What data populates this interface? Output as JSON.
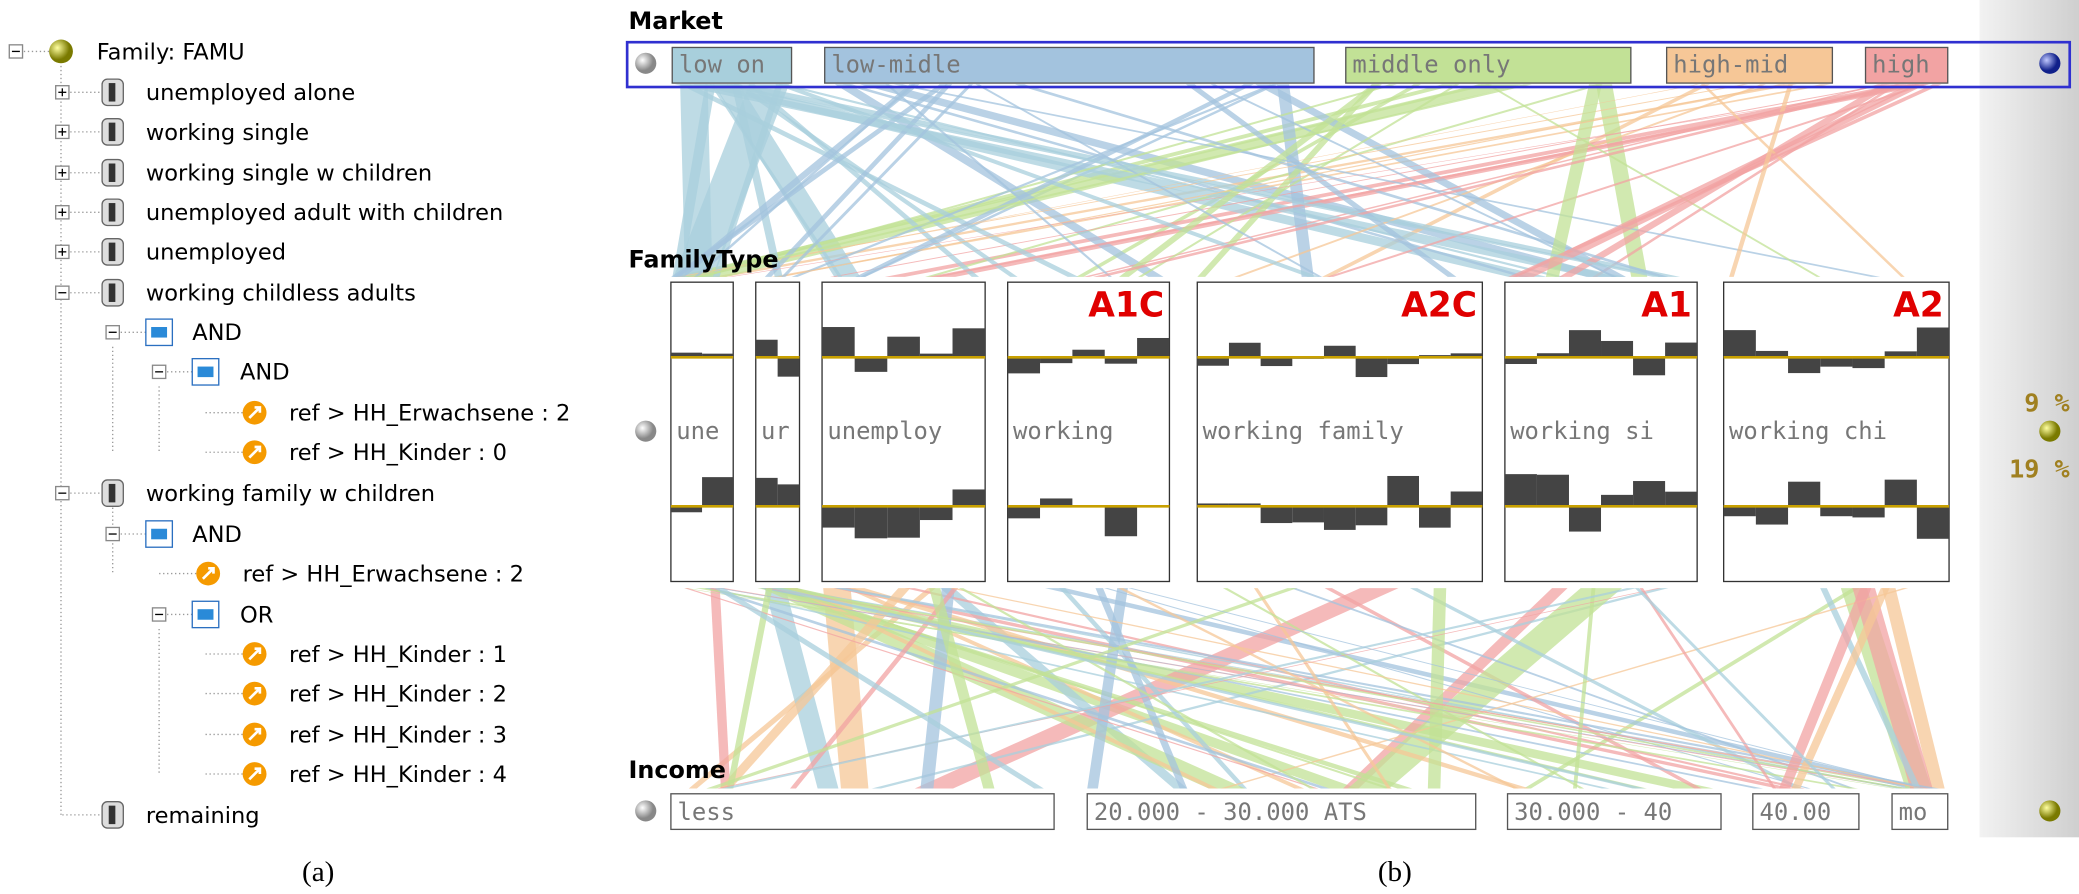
{
  "tree": {
    "nodes": [
      {
        "label": "Family: FAMU"
      },
      {
        "label": "unemployed alone"
      },
      {
        "label": "working single"
      },
      {
        "label": "working single w children"
      },
      {
        "label": "unemployed adult with children"
      },
      {
        "label": "unemployed"
      },
      {
        "label": "working childless adults"
      },
      {
        "label": "AND"
      },
      {
        "label": "AND"
      },
      {
        "label": "ref > HH_Erwachsene : 2"
      },
      {
        "label": "ref > HH_Kinder : 0"
      },
      {
        "label": "working family w children"
      },
      {
        "label": "AND"
      },
      {
        "label": "ref > HH_Erwachsene : 2"
      },
      {
        "label": "OR"
      },
      {
        "label": "ref > HH_Kinder : 1"
      },
      {
        "label": "ref > HH_Kinder : 2"
      },
      {
        "label": "ref > HH_Kinder : 3"
      },
      {
        "label": "ref > HH_Kinder : 4"
      },
      {
        "label": "remaining"
      }
    ]
  },
  "parsets": {
    "market": {
      "title": "Market",
      "categories": [
        {
          "label": "low on",
          "color": "#a8cfdc"
        },
        {
          "label": "low-midle",
          "color": "#a3c3de"
        },
        {
          "label": "middle only",
          "color": "#c2e196"
        },
        {
          "label": "high-mid",
          "color": "#f6c797"
        },
        {
          "label": "high",
          "color": "#f2a3a3"
        }
      ]
    },
    "family_type": {
      "title": "FamilyType",
      "categories": [
        {
          "label": "une"
        },
        {
          "label": "ur"
        },
        {
          "label": "unemploy"
        },
        {
          "label": "working",
          "tag": "A1C"
        },
        {
          "label": "working family",
          "tag": "A2C"
        },
        {
          "label": "working si",
          "tag": "A1"
        },
        {
          "label": "working chi",
          "tag": "A2"
        }
      ]
    },
    "income": {
      "title": "Income",
      "categories": [
        {
          "label": "less"
        },
        {
          "label": "20.000 - 30.000 ATS"
        },
        {
          "label": "30.000 - 40"
        },
        {
          "label": "40.00"
        },
        {
          "label": "mo"
        }
      ]
    },
    "percentages": [
      "9 %",
      "19 %"
    ]
  },
  "captions": [
    "(a)",
    "(b)"
  ]
}
